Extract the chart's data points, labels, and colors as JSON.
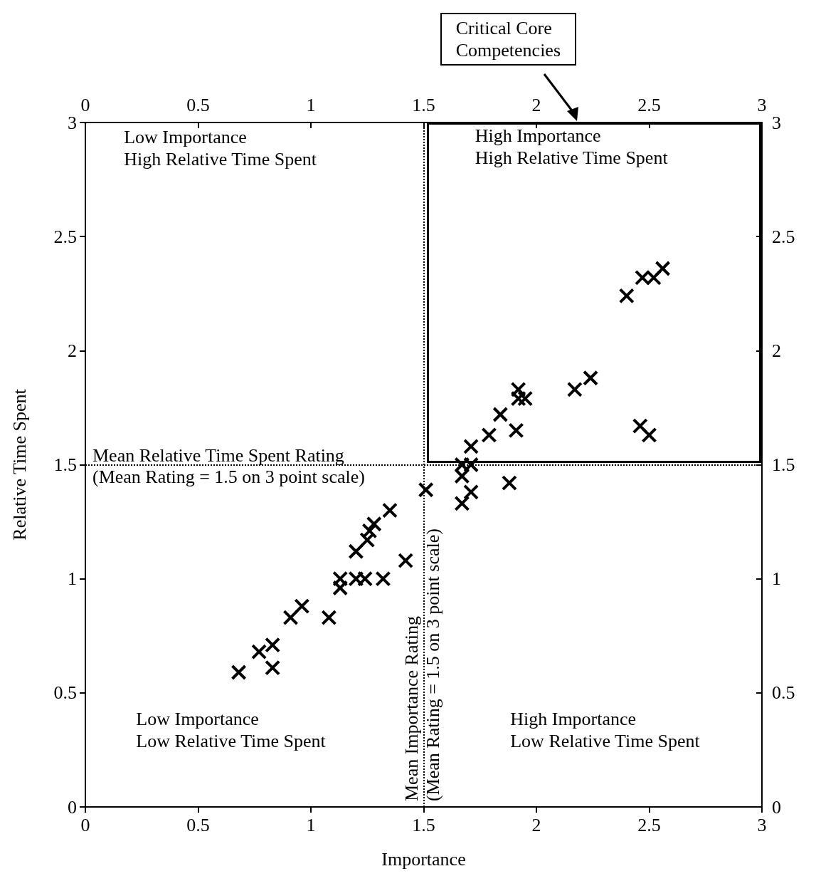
{
  "chart_data": {
    "type": "scatter",
    "xlabel": "Importance",
    "ylabel": "Relative Time Spent",
    "marker": "cross",
    "grid": false,
    "xlim": [
      0,
      3
    ],
    "xticks": [
      0,
      0.5,
      1,
      1.5,
      2,
      2.5,
      3
    ],
    "x2lim": [
      0,
      3
    ],
    "x2ticks": [
      0,
      0.5,
      1,
      1.5,
      2,
      2.5,
      3
    ],
    "ylim": [
      0,
      3
    ],
    "yticks": [
      0,
      0.5,
      1,
      1.5,
      2,
      2.5,
      3
    ],
    "y2lim": [
      0,
      3
    ],
    "y2ticks": [
      0,
      0.5,
      1,
      1.5,
      2,
      2.5,
      3
    ],
    "series": [
      {
        "color": "#000000",
        "x": [
          0.68,
          0.77,
          0.83,
          0.83,
          0.91,
          0.96,
          1.08,
          1.13,
          1.13,
          1.2,
          1.24,
          1.32,
          1.2,
          1.25,
          1.26,
          1.28,
          1.35,
          1.42,
          1.51,
          1.92,
          1.92,
          1.95,
          1.84,
          1.79,
          1.71,
          1.91,
          2.17,
          2.24,
          2.46,
          2.5,
          1.67,
          1.71,
          1.67,
          1.67,
          1.71,
          1.88,
          2.4,
          2.47,
          2.52,
          2.56
        ],
        "values": [
          0.59,
          0.68,
          0.71,
          0.61,
          0.83,
          0.88,
          0.83,
          1.0,
          0.96,
          1.0,
          1.0,
          1.0,
          1.12,
          1.17,
          1.21,
          1.24,
          1.3,
          1.08,
          1.39,
          1.83,
          1.79,
          1.79,
          1.72,
          1.63,
          1.58,
          1.65,
          1.83,
          1.88,
          1.67,
          1.63,
          1.5,
          1.5,
          1.45,
          1.33,
          1.38,
          1.42,
          2.24,
          2.32,
          2.32,
          2.36
        ]
      }
    ],
    "ref_lines": [
      {
        "axis": "y",
        "value": 1.5,
        "label": "Mean Relative Time Spent Rating\n(Mean Rating = 1.5 on 3 point scale)",
        "line_style": "dotted",
        "color": "#000000"
      },
      {
        "axis": "x",
        "value": 1.5,
        "label": "Mean Importance Rating\n(Mean Rating = 1.5 on 3 point scale)",
        "line_style": "dotted",
        "color": "#000000"
      }
    ],
    "annotations": [
      "Low Importance\nHigh Relative Time Spent",
      "High Importance\nHigh Relative Time Spent",
      "Low Importance\nLow Relative Time Spent",
      "High Importance\nLow Relative Time Spent",
      "Critical Core\nCompetencies"
    ]
  }
}
